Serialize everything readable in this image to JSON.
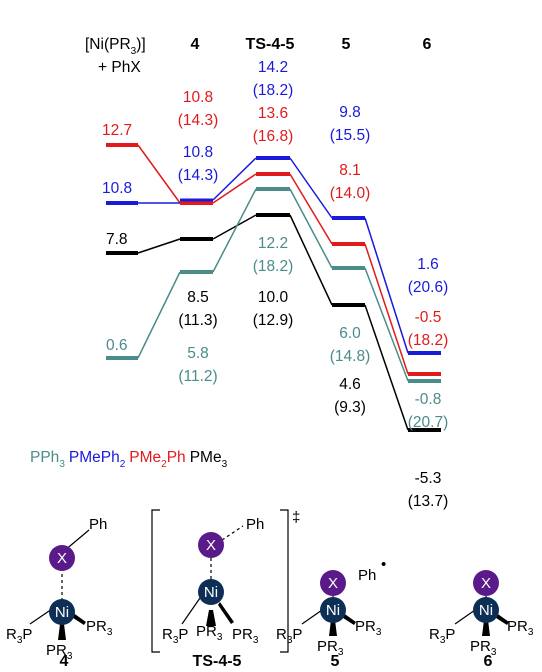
{
  "headers": {
    "reactants_prefix": "[Ni(PR",
    "reactants_sub": "3",
    "reactants_mid": ")",
    "reactants_suffix": "]",
    "reactants_line2": "+ PhX",
    "h4": "4",
    "hts": "TS-4-5",
    "h5": "5",
    "h6": "6"
  },
  "colors": {
    "PPh3": "#4a8c8a",
    "PMePh2": "#1a1adb",
    "PMe2Ph": "#e11b1b",
    "PMe3": "#000000"
  },
  "energies": {
    "PMe2Ph": {
      "react": "12.7",
      "i4": "10.8",
      "i4b": "(14.3)",
      "ts": "13.6",
      "tsb": "(16.8)",
      "i5": "8.1",
      "i5b": "(14.0)",
      "i6": "-0.5",
      "i6b": "(18.2)"
    },
    "PMePh2": {
      "react": "10.8",
      "i4": "10.8",
      "i4b": "(14.3)",
      "ts": "14.2",
      "tsb": "(18.2)",
      "i5": "9.8",
      "i5b": "(15.5)",
      "i6": "1.6",
      "i6b": "(20.6)"
    },
    "PMe3": {
      "react": "7.8",
      "i4": "8.5",
      "i4b": "(11.3)",
      "ts": "10.0",
      "tsb": "(12.9)",
      "i5": "4.6",
      "i5b": "(9.3)",
      "i6": "-5.3",
      "i6b": "(13.7)"
    },
    "PPh3": {
      "react": "0.6",
      "i4": "5.8",
      "i4b": "(11.2)",
      "ts": "12.2",
      "tsb": "(18.2)",
      "i5": "6.0",
      "i5b": "(14.8)",
      "i6": "-0.8",
      "i6b": "(20.7)"
    }
  },
  "legend": {
    "ph3_a": "PPh",
    "ph3_sub": "3",
    "meph2_a": "PMePh",
    "meph2_sub": "2",
    "me2ph_a": "PMe",
    "me2ph_sub": "2",
    "me2ph_b": "Ph",
    "me3_a": "PMe",
    "me3_sub": "3"
  },
  "structures": {
    "x": "X",
    "ni": "Ni",
    "ph": "Ph",
    "ph_radical": "Ph",
    "radical_dot": "•",
    "r": "R",
    "sub3": "3",
    "p": "P",
    "pr": "PR",
    "dagger": "‡",
    "label4": "4",
    "labelts": "TS-4-5",
    "label5": "5",
    "label6": "6"
  }
}
